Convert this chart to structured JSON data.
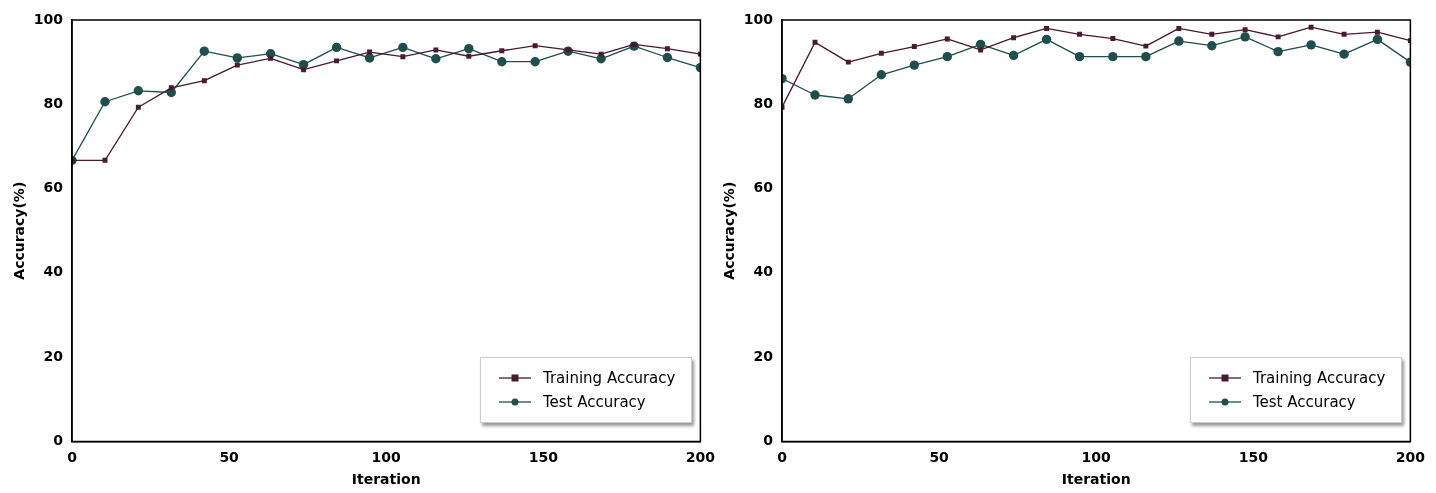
{
  "chart_data": [
    {
      "type": "line",
      "xlabel": "Iteration",
      "ylabel": "Accuracy(%)",
      "xlim": [
        0,
        200
      ],
      "xticks": [
        0,
        50,
        100,
        150,
        200
      ],
      "ylim": [
        0,
        100
      ],
      "yticks": [
        0,
        20,
        40,
        60,
        80,
        100
      ],
      "grid": false,
      "legend": "bottom right",
      "line_style": "solid",
      "x": [
        0,
        10.5,
        21.1,
        31.6,
        42.1,
        52.6,
        63.2,
        73.7,
        84.2,
        94.7,
        105.3,
        115.8,
        126.3,
        136.8,
        147.4,
        157.9,
        168.4,
        178.9,
        189.5,
        200
      ],
      "series": [
        {
          "name": "Training Accuracy",
          "color": "#4a1a30",
          "marker": "square",
          "values": [
            66.7,
            66.7,
            79.3,
            83.9,
            85.6,
            89.3,
            90.9,
            88.2,
            90.3,
            92.4,
            91.3,
            92.9,
            91.4,
            92.7,
            93.9,
            92.9,
            91.9,
            94.2,
            93.2,
            91.9
          ]
        },
        {
          "name": "Test Accuracy",
          "color": "#1f4f4d",
          "marker": "circle",
          "values": [
            66.7,
            80.6,
            83.2,
            82.8,
            92.6,
            91.0,
            92.0,
            89.4,
            93.5,
            91.0,
            93.5,
            90.8,
            93.2,
            90.1,
            90.1,
            92.6,
            90.8,
            93.8,
            91.1,
            88.7
          ]
        }
      ]
    },
    {
      "type": "line",
      "xlabel": "Iteration",
      "ylabel": "Accuracy(%)",
      "xlim": [
        0,
        200
      ],
      "xticks": [
        0,
        50,
        100,
        150,
        200
      ],
      "ylim": [
        0,
        100
      ],
      "yticks": [
        0,
        20,
        40,
        60,
        80,
        100
      ],
      "grid": false,
      "legend": "bottom right",
      "line_style": "solid",
      "x": [
        0,
        10.5,
        21.1,
        31.6,
        42.1,
        52.6,
        63.2,
        73.7,
        84.2,
        94.7,
        105.3,
        115.8,
        126.3,
        136.8,
        147.4,
        157.9,
        168.4,
        178.9,
        189.5,
        200
      ],
      "series": [
        {
          "name": "Training Accuracy",
          "color": "#4a1a30",
          "marker": "square",
          "values": [
            79.3,
            94.7,
            90.0,
            92.1,
            93.7,
            95.5,
            92.9,
            95.8,
            98.0,
            96.6,
            95.6,
            93.8,
            98.0,
            96.6,
            97.7,
            96.0,
            98.3,
            96.6,
            97.1,
            95.1
          ]
        },
        {
          "name": "Test Accuracy",
          "color": "#1f4f4d",
          "marker": "circle",
          "values": [
            86.1,
            82.2,
            81.3,
            87.0,
            89.3,
            91.3,
            94.2,
            91.6,
            95.4,
            91.3,
            91.3,
            91.3,
            95.0,
            93.9,
            96.0,
            92.5,
            94.1,
            91.9,
            95.4,
            90.0
          ]
        }
      ]
    }
  ]
}
